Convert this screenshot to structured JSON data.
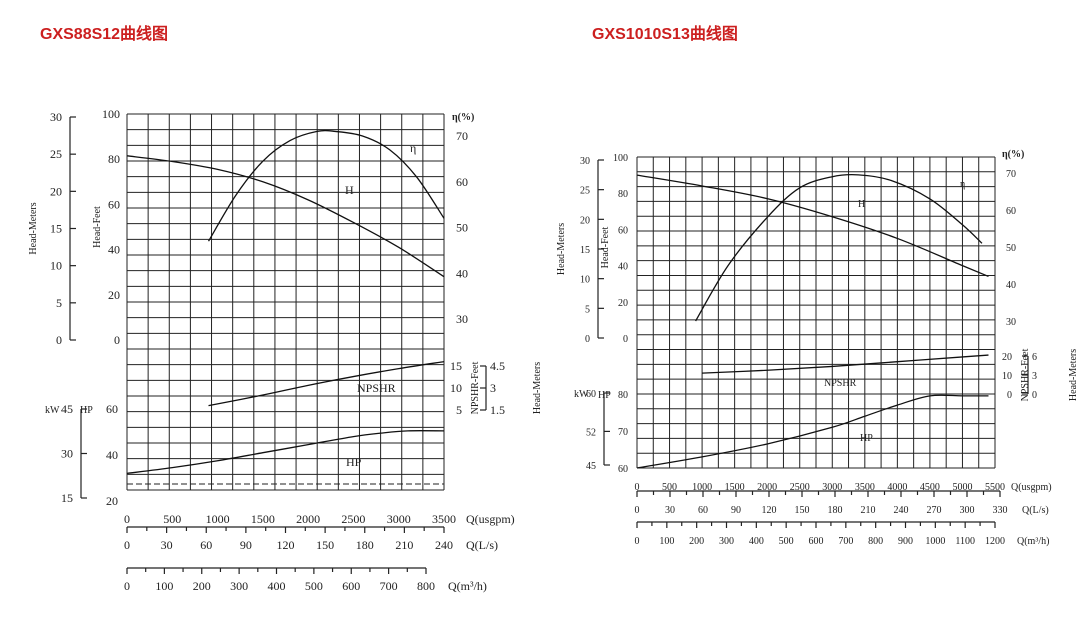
{
  "titles": {
    "left": "GXS88S12曲线图",
    "right": "GXS1010S13曲线图"
  },
  "colors": {
    "title": "#cc1f1f",
    "ink": "#222222"
  },
  "chart_data": [
    {
      "type": "line",
      "title": "GXS88S12曲线图",
      "x_unit": "Q(usgpm)",
      "xlim": [
        0,
        3500
      ],
      "x_ticks": [
        0,
        500,
        1000,
        1500,
        2000,
        2500,
        3000,
        3500
      ],
      "secondary_x_axes": [
        {
          "label": "Q(L/s)",
          "ticks": [
            0,
            30,
            60,
            90,
            120,
            150,
            180,
            210,
            240
          ]
        },
        {
          "label": "Q(m³/h)",
          "ticks": [
            0,
            100,
            200,
            300,
            400,
            500,
            600,
            700,
            800
          ]
        }
      ],
      "y_axes": {
        "head_meters": {
          "label": "Head-Meters",
          "ticks": [
            0,
            5,
            10,
            15,
            20,
            25,
            30
          ]
        },
        "head_feet": {
          "label": "Head-Feet",
          "ticks": [
            0,
            20,
            40,
            60,
            80,
            100
          ]
        },
        "efficiency": {
          "label": "η(%)",
          "ticks": [
            30,
            40,
            50,
            60,
            70
          ]
        },
        "npshr_feet": {
          "label": "NPSHR-Feet",
          "ticks": [
            5,
            10,
            15
          ]
        },
        "npshr_meters": {
          "label": "Head-Meters",
          "ticks": [
            "1.5",
            "3",
            "4.5"
          ]
        },
        "kw": {
          "label": "kW",
          "ticks": [
            15,
            30,
            45
          ]
        },
        "hp": {
          "label": "HP",
          "ticks": [
            20,
            40,
            60
          ]
        }
      },
      "series": [
        {
          "name": "H",
          "axis": "head_feet",
          "x": [
            0,
            500,
            1000,
            1500,
            2000,
            2500,
            3000,
            3500
          ],
          "y": [
            81.5,
            79,
            75.5,
            70,
            62,
            52,
            41,
            28
          ]
        },
        {
          "name": "η",
          "axis": "efficiency",
          "x": [
            900,
            1200,
            1500,
            1800,
            2100,
            2300,
            2600,
            2900,
            3200,
            3500
          ],
          "y": [
            47,
            57,
            64.5,
            69,
            71,
            71,
            70,
            67,
            61,
            52
          ]
        },
        {
          "name": "NPSHR",
          "axis": "npshr_feet",
          "x": [
            900,
            1500,
            2000,
            2500,
            3000,
            3500
          ],
          "y": [
            6,
            8.4,
            10.6,
            12.6,
            14.4,
            16
          ]
        },
        {
          "name": "HP",
          "axis": "hp",
          "x": [
            0,
            500,
            1000,
            1500,
            2000,
            2500,
            2800,
            3100,
            3500
          ],
          "y": [
            32,
            34.5,
            37.5,
            41,
            44.5,
            48,
            49.5,
            50.5,
            50.5
          ]
        }
      ]
    },
    {
      "type": "line",
      "title": "GXS1010S13曲线图",
      "x_unit": "Q(usgpm)",
      "xlim": [
        0,
        5500
      ],
      "x_ticks": [
        0,
        500,
        1000,
        1500,
        2000,
        2500,
        3000,
        3500,
        4000,
        4500,
        5000,
        5500
      ],
      "secondary_x_axes": [
        {
          "label": "Q(L/s)",
          "ticks": [
            0,
            30,
            60,
            90,
            120,
            150,
            180,
            210,
            240,
            270,
            300,
            330
          ]
        },
        {
          "label": "Q(m³/h)",
          "ticks": [
            0,
            100,
            200,
            300,
            400,
            500,
            600,
            700,
            800,
            900,
            1000,
            1100,
            1200
          ]
        }
      ],
      "y_axes": {
        "head_meters": {
          "label": "Head-Meters",
          "ticks": [
            0,
            5,
            10,
            15,
            20,
            25,
            30
          ]
        },
        "head_feet": {
          "label": "Head-Feet",
          "ticks": [
            0,
            20,
            40,
            60,
            80,
            100
          ]
        },
        "efficiency": {
          "label": "η(%)",
          "ticks": [
            30,
            40,
            50,
            60,
            70
          ]
        },
        "npshr_feet": {
          "label": "NPSHR-Feet",
          "ticks": [
            0,
            10,
            20
          ]
        },
        "npshr_meters": {
          "label": "Head-Meters",
          "ticks": [
            0,
            3,
            6
          ]
        },
        "kw": {
          "label": "kW",
          "ticks": [
            45,
            52,
            60
          ]
        },
        "hp": {
          "label": "HP",
          "ticks": [
            60,
            70,
            80
          ]
        }
      },
      "series": [
        {
          "name": "H",
          "axis": "head_feet",
          "x": [
            0,
            1000,
            2000,
            3000,
            4000,
            5000,
            5400
          ],
          "y": [
            90,
            84,
            77,
            67,
            55,
            40,
            34
          ]
        },
        {
          "name": "η",
          "axis": "efficiency",
          "x": [
            900,
            1400,
            2000,
            2500,
            3000,
            3400,
            3900,
            4500,
            5000,
            5300
          ],
          "y": [
            30,
            45,
            58,
            66,
            69,
            69.5,
            68,
            63,
            56,
            51
          ]
        },
        {
          "name": "NPSHR",
          "axis": "npshr_feet",
          "x": [
            1000,
            2000,
            3000,
            4000,
            5000,
            5400
          ],
          "y": [
            11,
            12.5,
            14.5,
            17,
            19.5,
            20.5
          ]
        },
        {
          "name": "HP",
          "axis": "hp",
          "x": [
            0,
            1000,
            2000,
            3000,
            3500,
            4000,
            4500,
            5000,
            5400
          ],
          "y": [
            60,
            63,
            66.5,
            71,
            74,
            77,
            79.5,
            79.5,
            79.5
          ]
        }
      ]
    }
  ]
}
